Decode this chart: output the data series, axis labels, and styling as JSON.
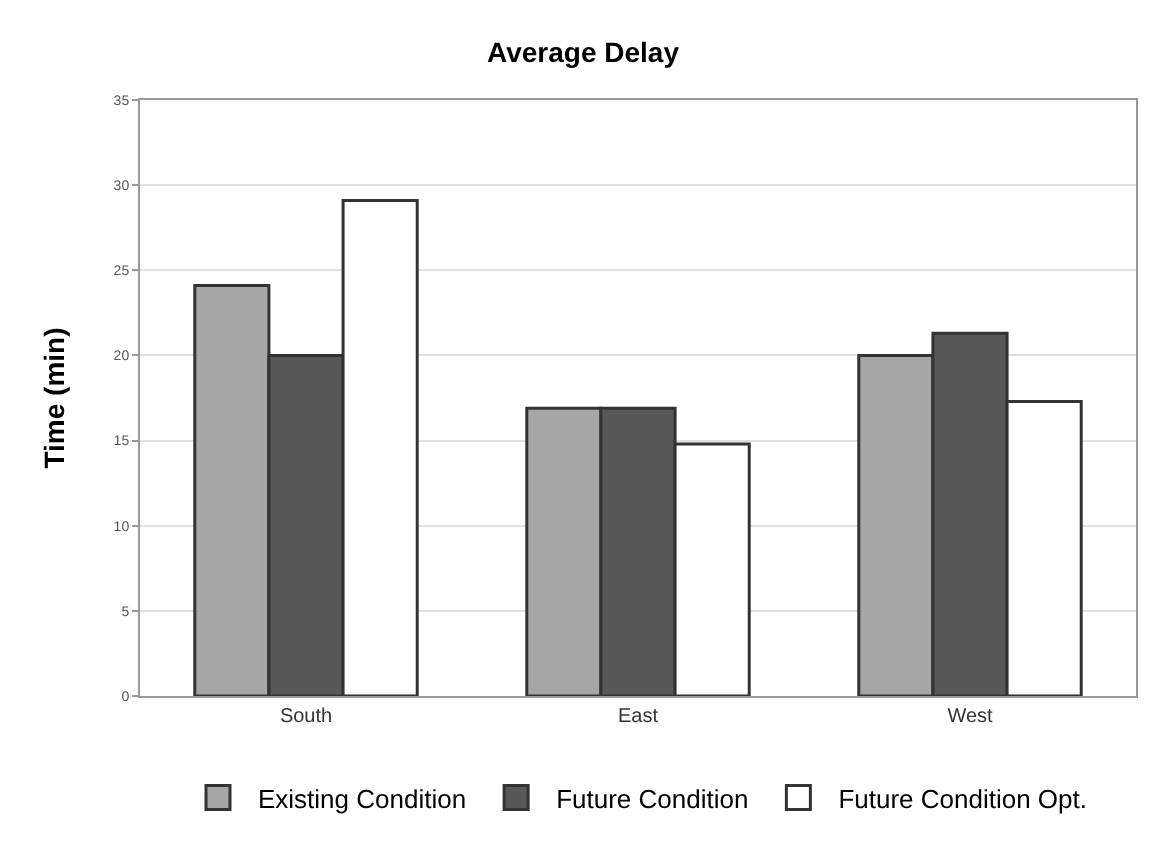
{
  "chart_data": {
    "type": "bar",
    "title": "Average Delay",
    "ylabel": "Time (min)",
    "categories": [
      "South",
      "East",
      "West"
    ],
    "series": [
      {
        "name": "Existing Condition",
        "color": "#a6a6a6",
        "values": [
          24.1,
          16.9,
          20
        ]
      },
      {
        "name": "Future Condition",
        "color": "#585858",
        "values": [
          20,
          16.9,
          21.3
        ]
      },
      {
        "name": "Future Condition Opt.",
        "color": "#ffffff",
        "values": [
          29.1,
          14.8,
          17.3
        ]
      }
    ],
    "ylim": [
      0,
      35
    ],
    "yticks": [
      0,
      5,
      10,
      15,
      20,
      25,
      30,
      35
    ],
    "grid": "y",
    "legend": "bottom"
  }
}
